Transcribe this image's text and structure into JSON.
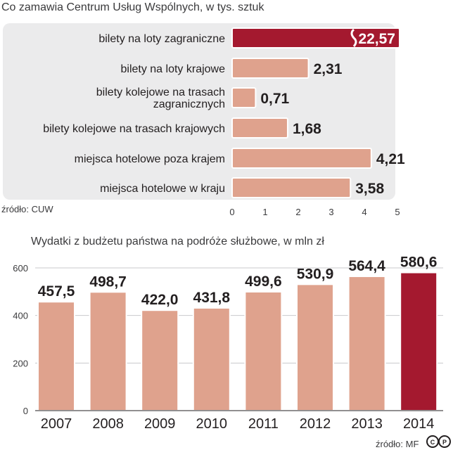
{
  "colors": {
    "bar": "#dfa28d",
    "highlight": "#a4192f",
    "panel": "#ebebec",
    "text": "#231f20",
    "axis_text": "#3a3a3c"
  },
  "chart_data": [
    {
      "type": "bar",
      "orientation": "horizontal",
      "title": "Co zamawia Centrum Usług Wspólnych, w tys. sztuk",
      "categories": [
        [
          "bilety na loty zagraniczne"
        ],
        [
          "bilety na loty krajowe"
        ],
        [
          "bilety kolejowe na trasach",
          "zagranicznych"
        ],
        [
          "bilety kolejowe na trasach krajowych"
        ],
        [
          "miejsca hotelowe poza krajem"
        ],
        [
          "miejsca hotelowe w kraju"
        ]
      ],
      "values": [
        22.57,
        2.31,
        0.71,
        1.68,
        4.21,
        3.58
      ],
      "value_labels": [
        "22,57",
        "2,31",
        "0,71",
        "1,68",
        "4,21",
        "3,58"
      ],
      "xlim": [
        0,
        5
      ],
      "ticks": [
        "0",
        "1",
        "2",
        "3",
        "4",
        "5"
      ],
      "axis_break_on": [
        0
      ],
      "highlight_index": 0,
      "source": "źródło: CUW"
    },
    {
      "type": "bar",
      "orientation": "vertical",
      "title": "Wydatki z budżetu państwa na podróże służbowe, w mln zł",
      "categories": [
        "2007",
        "2008",
        "2009",
        "2010",
        "2011",
        "2012",
        "2013",
        "2014"
      ],
      "values": [
        457.5,
        498.7,
        422.0,
        431.8,
        499.6,
        530.9,
        564.4,
        580.6
      ],
      "value_labels": [
        "457,5",
        "498,7",
        "422,0",
        "431,8",
        "499,6",
        "530,9",
        "564,4",
        "580,6"
      ],
      "ylim": [
        0,
        600
      ],
      "ticks": [
        "0",
        "200",
        "400",
        "600"
      ],
      "highlight_index": 7,
      "source": "źródło: MF",
      "license_mark": "cc"
    }
  ]
}
